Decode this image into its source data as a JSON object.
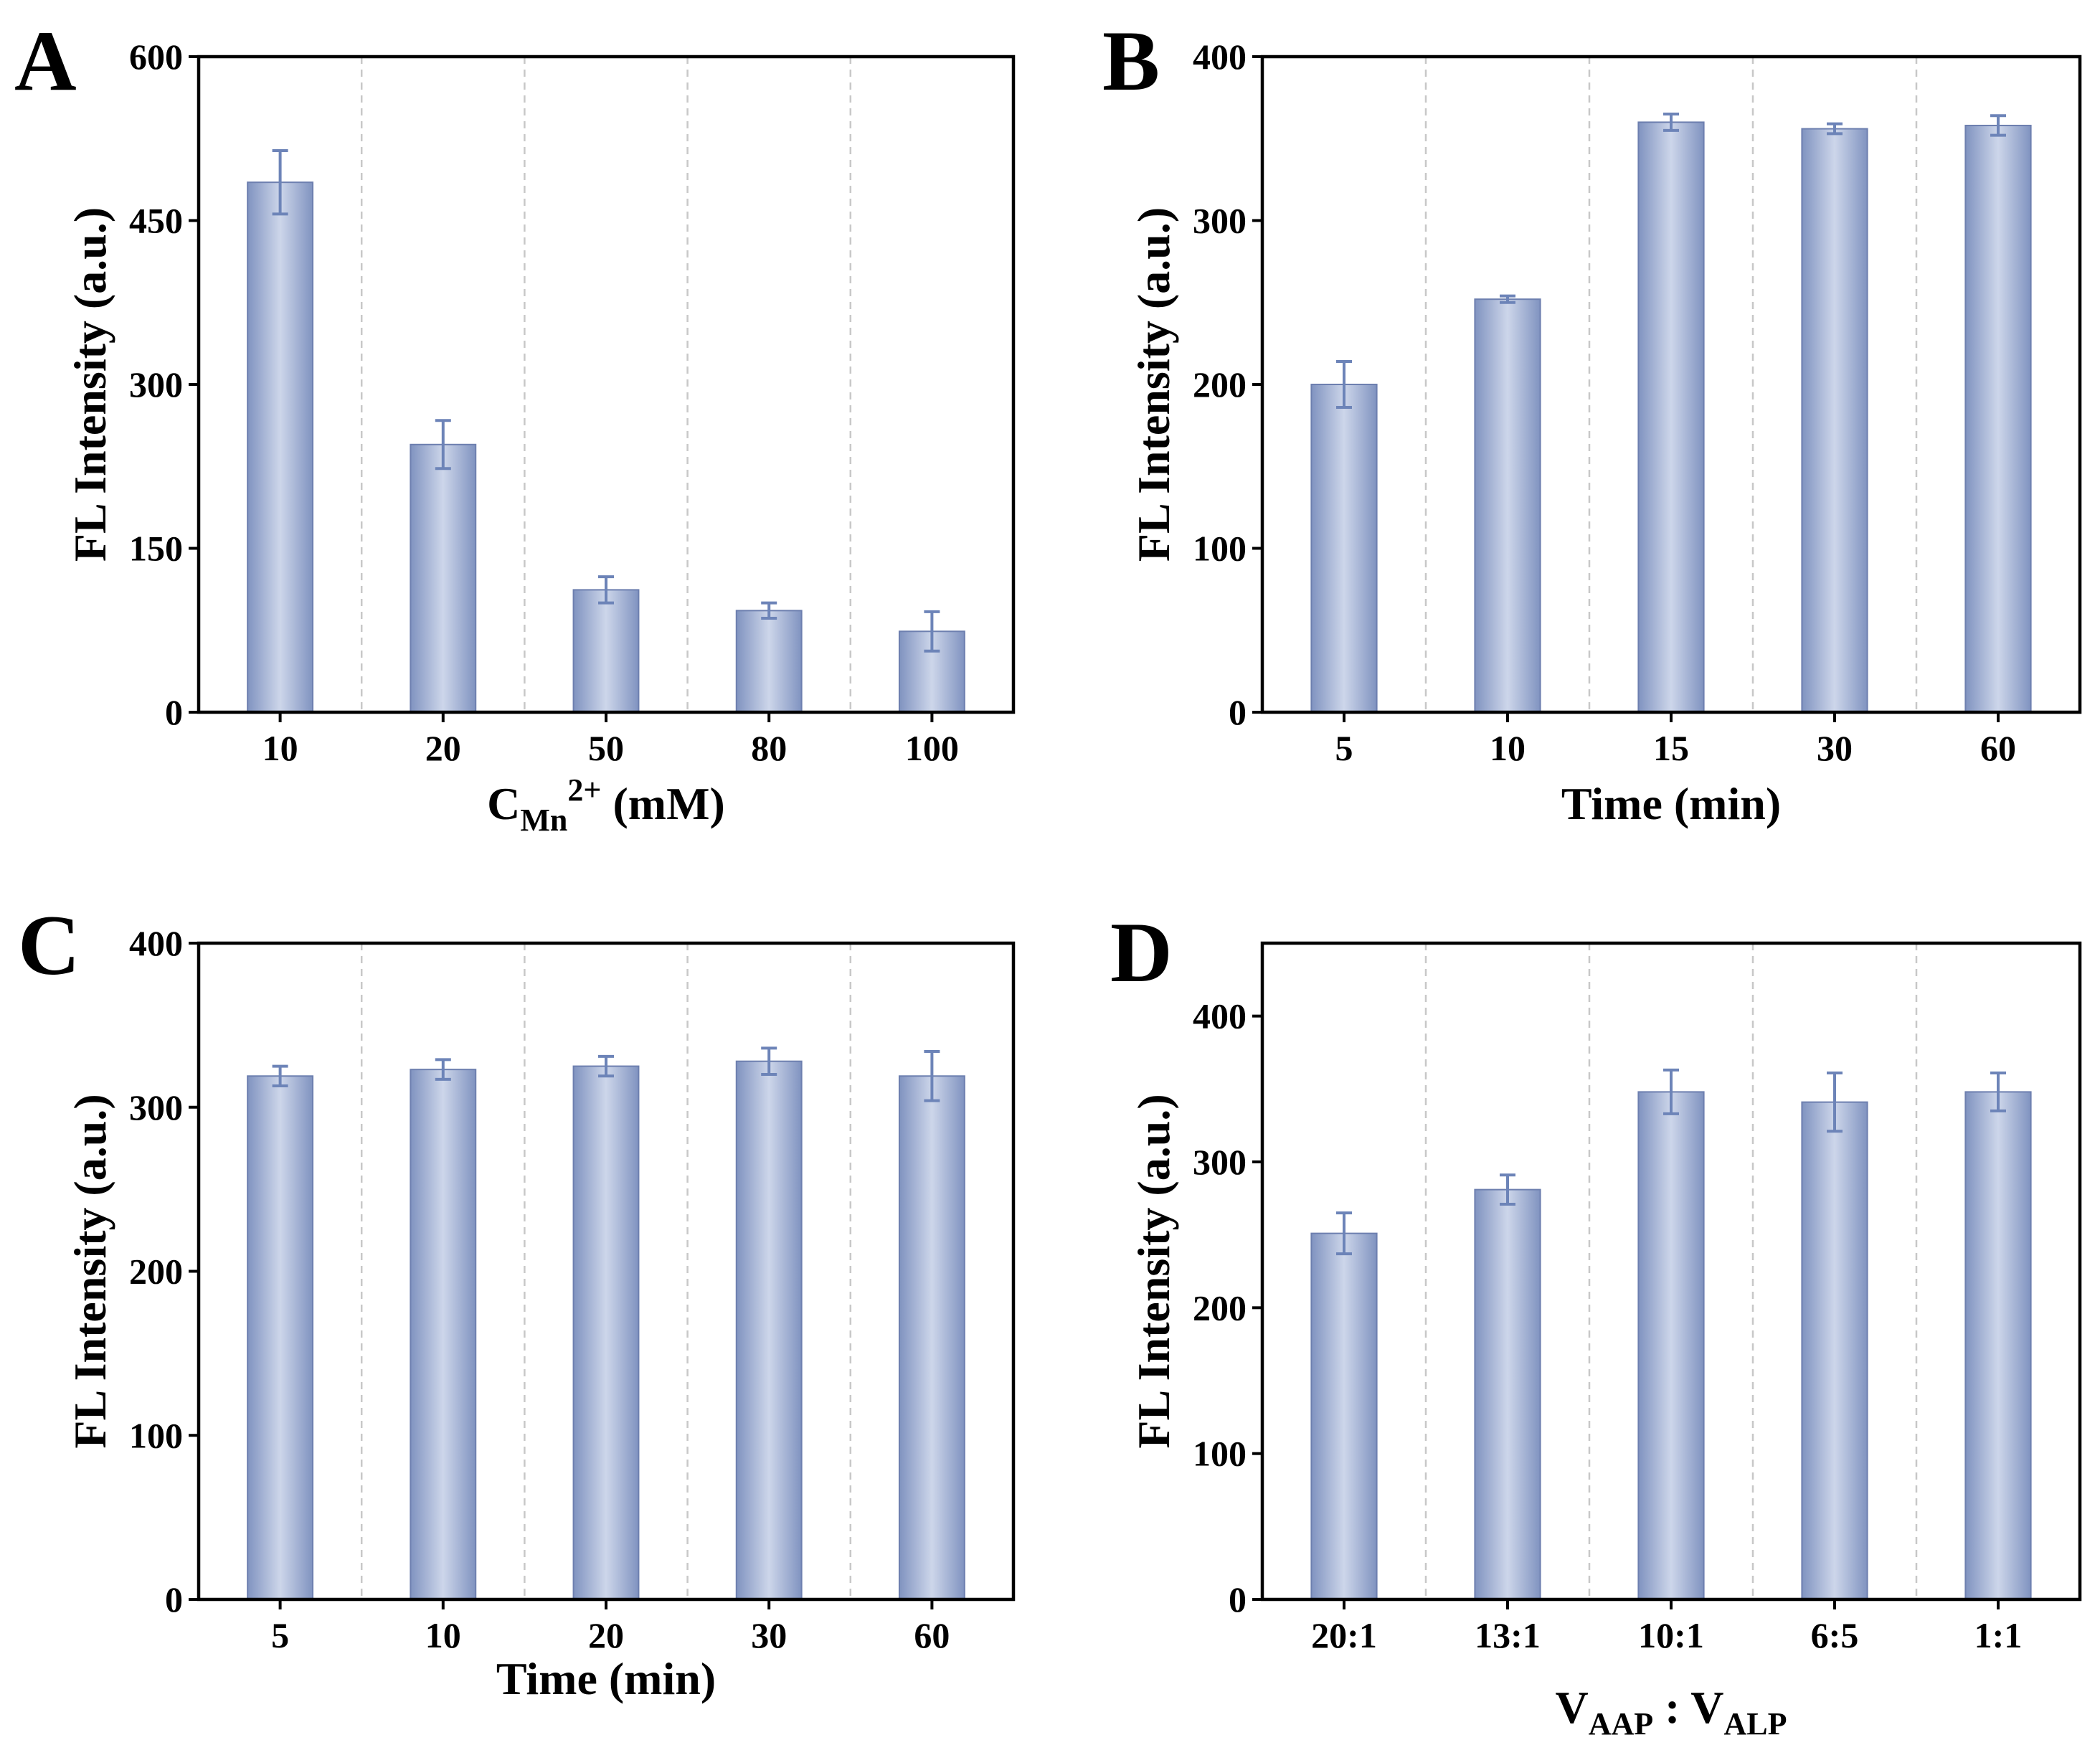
{
  "colors": {
    "bar_edge": "#6d7faf",
    "bar_dark": "#8093c0",
    "bar_light": "#cdd6ea",
    "error_bar": "#6d84b8",
    "grid": "#c8c8c8",
    "axis": "#000000"
  },
  "chart_data": [
    {
      "panel": "A",
      "type": "bar",
      "xlabel": {
        "main": "C",
        "sub": "Mn",
        "sup": "2+",
        "rest": " (mM)"
      },
      "ylabel": "FL Intensity (a.u.)",
      "categories": [
        "10",
        "20",
        "50",
        "80",
        "100"
      ],
      "values": [
        485,
        245,
        112,
        93,
        74
      ],
      "errors": [
        29,
        22,
        12,
        7,
        18
      ],
      "ylim": [
        0,
        600
      ],
      "yticks": [
        0,
        150,
        300,
        450,
        600
      ],
      "grid": "vertical-dashed"
    },
    {
      "panel": "B",
      "type": "bar",
      "xlabel": {
        "main": "Time (min)"
      },
      "ylabel": "FL Intensity (a.u.)",
      "categories": [
        "5",
        "10",
        "15",
        "30",
        "60"
      ],
      "values": [
        200,
        252,
        360,
        356,
        358
      ],
      "errors": [
        14,
        2,
        5,
        3,
        6
      ],
      "ylim": [
        0,
        400
      ],
      "yticks": [
        0,
        100,
        200,
        300,
        400
      ],
      "grid": "vertical-dashed"
    },
    {
      "panel": "C",
      "type": "bar",
      "xlabel": {
        "main": "Time (min)"
      },
      "ylabel": "FL Intensity (a.u.)",
      "categories": [
        "5",
        "10",
        "20",
        "30",
        "60"
      ],
      "values": [
        319,
        323,
        325,
        328,
        319
      ],
      "errors": [
        6,
        6,
        6,
        8,
        15
      ],
      "ylim": [
        0,
        400
      ],
      "yticks": [
        0,
        100,
        200,
        300,
        400
      ],
      "grid": "vertical-dashed"
    },
    {
      "panel": "D",
      "type": "bar",
      "xlabel": {
        "main": "V",
        "sub": "AAP",
        "mid": " : V",
        "sub2": "ALP"
      },
      "ylabel": "FL Intensity (a.u.)",
      "categories": [
        "20:1",
        "13:1",
        "10:1",
        "6:5",
        "1:1"
      ],
      "values": [
        251,
        281,
        348,
        341,
        348
      ],
      "errors": [
        14,
        10,
        15,
        20,
        13
      ],
      "ylim": [
        0,
        450
      ],
      "yticks": [
        0,
        100,
        200,
        300,
        400
      ],
      "grid": "vertical-dashed"
    }
  ]
}
